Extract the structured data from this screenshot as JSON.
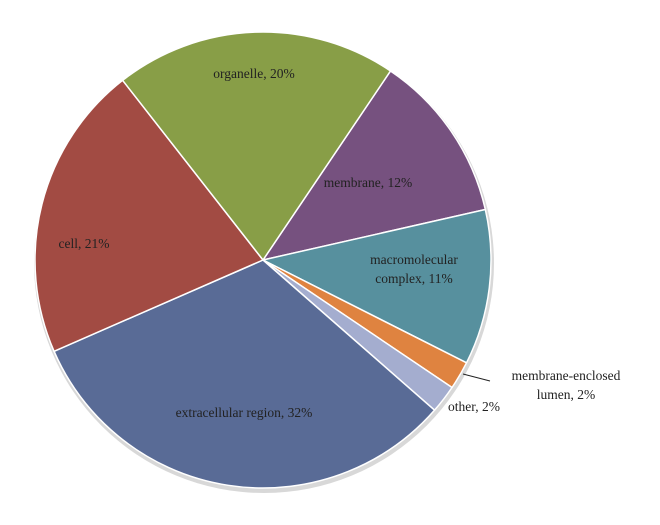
{
  "chart_data": {
    "type": "pie",
    "title": "",
    "slices": [
      {
        "name": "membrane",
        "label": "membrane, 12%",
        "value": 12,
        "color": "#76517f"
      },
      {
        "name": "macromolecular complex",
        "label_lines": [
          "macromolecular",
          "complex, 11%"
        ],
        "value": 11,
        "color": "#57909e"
      },
      {
        "name": "membrane-enclosed lumen",
        "label_lines": [
          "membrane-enclosed",
          "lumen, 2%"
        ],
        "value": 2,
        "color": "#df8340"
      },
      {
        "name": "other",
        "label": "other, 2%",
        "value": 2,
        "color": "#a4adcf"
      },
      {
        "name": "extracellular region",
        "label": "extracellular region, 32%",
        "value": 32,
        "color": "#596b96"
      },
      {
        "name": "cell",
        "label": "cell, 21%",
        "value": 21,
        "color": "#a24b43"
      },
      {
        "name": "organelle",
        "label": "organelle, 20%",
        "value": 20,
        "color": "#889e47"
      }
    ]
  }
}
